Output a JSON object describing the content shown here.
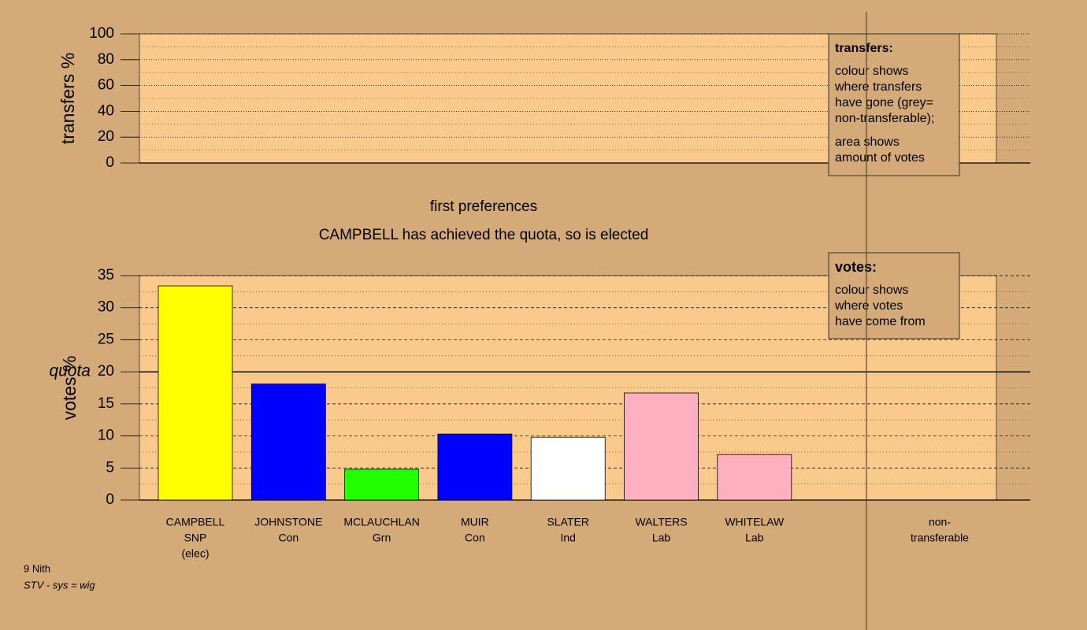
{
  "chart_data": [
    {
      "type": "bar",
      "ylabel": "transfers %",
      "ylim": [
        0,
        100
      ],
      "yticks": [
        0,
        20,
        40,
        60,
        80,
        100
      ],
      "grid": true,
      "legend": {
        "title": "transfers:",
        "paragraphs": [
          [
            "colour shows",
            "where transfers",
            "have gone (grey=",
            "non-transferable);"
          ],
          [
            "area shows",
            "amount of votes"
          ]
        ]
      }
    },
    {
      "type": "bar",
      "title": "first preferences",
      "subtitle": "CAMPBELL has achieved the quota, so is elected",
      "ylabel": "votes %",
      "ylim": [
        0,
        35
      ],
      "yticks": [
        0,
        5,
        10,
        15,
        20,
        25,
        30,
        35
      ],
      "grid": true,
      "quota": {
        "label": "quota",
        "value": 20
      },
      "categories": [
        [
          "CAMPBELL",
          "SNP",
          "(elec)"
        ],
        [
          "JOHNSTONE",
          "Con"
        ],
        [
          "MCLAUCHLAN",
          "Grn"
        ],
        [
          "MUIR",
          "Con"
        ],
        [
          "SLATER",
          "Ind"
        ],
        [
          "WALTERS",
          "Lab"
        ],
        [
          "WHITELAW",
          "Lab"
        ],
        [
          "non-",
          "transferable"
        ]
      ],
      "values": [
        33.4,
        18.1,
        4.8,
        10.3,
        9.8,
        16.7,
        7.1,
        null
      ],
      "colors": [
        "#ffff00",
        "#0000ff",
        "#22ff00",
        "#0000ff",
        "#ffffff",
        "#ffb0c0",
        "#ffb0c0",
        null
      ],
      "legend": {
        "title": "votes:",
        "paragraphs": [
          [
            "colour shows",
            "where votes",
            "have come from"
          ]
        ]
      }
    }
  ],
  "footer": {
    "district": "9 Nith",
    "system": "STV - sys = wig"
  }
}
